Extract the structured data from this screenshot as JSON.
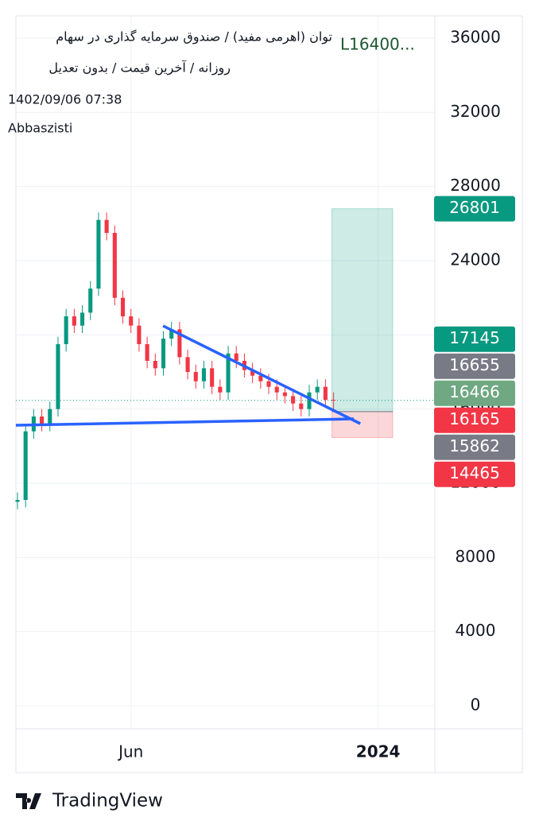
{
  "chart_data": {
    "type": "candlestick",
    "title": "توان (اهرمی مفید) / صندوق سرمایه گذاری در سهام",
    "subtitle": "روزانه / آخرین قیمت / بدون تعدیل",
    "ohlc_status": "L16400...",
    "timestamp": "1402/09/06 07:38",
    "author": "Abbaszisti",
    "brand": "TradingView",
    "up_color": "#089981",
    "down_color": "#f23645",
    "open": [
      11000,
      11100,
      14800,
      15600,
      15200,
      16000,
      19500,
      21000,
      20500,
      21200,
      22500,
      26200,
      25500,
      22000,
      21000,
      20500,
      19500,
      18600,
      18200,
      19800,
      20300,
      18800,
      18000,
      17500,
      18200,
      17200,
      16900,
      19000,
      18600,
      18100,
      17800,
      17500,
      17200,
      16900,
      16700,
      16300,
      16000,
      16900,
      17200,
      16500
    ],
    "high": [
      11500,
      15200,
      16000,
      16000,
      16400,
      19900,
      21400,
      21400,
      21600,
      22900,
      26600,
      26600,
      25900,
      22400,
      21400,
      20900,
      19900,
      19000,
      20200,
      20700,
      20700,
      19200,
      18400,
      18600,
      18600,
      17600,
      19400,
      19400,
      19000,
      18500,
      18200,
      17900,
      17600,
      17300,
      17100,
      16700,
      17300,
      17600,
      17600,
      16900
    ],
    "low": [
      10600,
      10700,
      14400,
      14800,
      14800,
      15600,
      19100,
      20100,
      20100,
      20800,
      22100,
      25100,
      21600,
      20600,
      20100,
      19100,
      18200,
      17800,
      17800,
      19400,
      18400,
      17600,
      17100,
      17100,
      16800,
      16500,
      16500,
      18200,
      17700,
      17400,
      17100,
      16800,
      16500,
      16300,
      15900,
      15600,
      15600,
      16500,
      16100,
      16000
    ],
    "close": [
      11100,
      14800,
      15600,
      15200,
      16000,
      19500,
      21000,
      20500,
      21200,
      22500,
      26200,
      25500,
      22000,
      21000,
      20500,
      19500,
      18600,
      18200,
      19800,
      20300,
      18800,
      18000,
      17500,
      18200,
      17200,
      16900,
      19000,
      18600,
      18100,
      17800,
      17500,
      17200,
      16900,
      16700,
      16300,
      16000,
      16900,
      17200,
      16500,
      16466
    ],
    "xlim": [
      0,
      51.5
    ],
    "xticks": [
      {
        "value": 14,
        "label": "Jun"
      },
      {
        "value": 44.5,
        "label": "2024"
      }
    ],
    "ylim": [
      -1243,
      37200
    ],
    "yticks": [
      0,
      4000,
      8000,
      12000,
      16000,
      20000,
      24000,
      28000,
      32000,
      36000
    ],
    "grid": true,
    "trend_lines": [
      {
        "color": "#2962ff",
        "x": [
          17.96,
          42.3
        ],
        "y": [
          20486,
          15214
        ]
      },
      {
        "color": "#2962ff",
        "x": [
          -0.2,
          41.5
        ],
        "y": [
          15129,
          15471
        ]
      }
    ],
    "position": {
      "x": [
        38.8,
        46.3
      ],
      "entry": 15862,
      "target": 26801,
      "stop": 14465,
      "profit_color": "#089981",
      "loss_color": "#f23645"
    },
    "last_price": 16466,
    "price_labels": [
      {
        "value": 26801,
        "color": "#089981"
      },
      {
        "value": 17145,
        "color": "#089981"
      },
      {
        "value": 16655,
        "color": "#787b86"
      },
      {
        "value": 16466,
        "color": "#6fa882"
      },
      {
        "value": 16165,
        "color": "#f23645"
      },
      {
        "value": 15862,
        "color": "#787b86"
      },
      {
        "value": 14465,
        "color": "#f23645"
      }
    ]
  }
}
